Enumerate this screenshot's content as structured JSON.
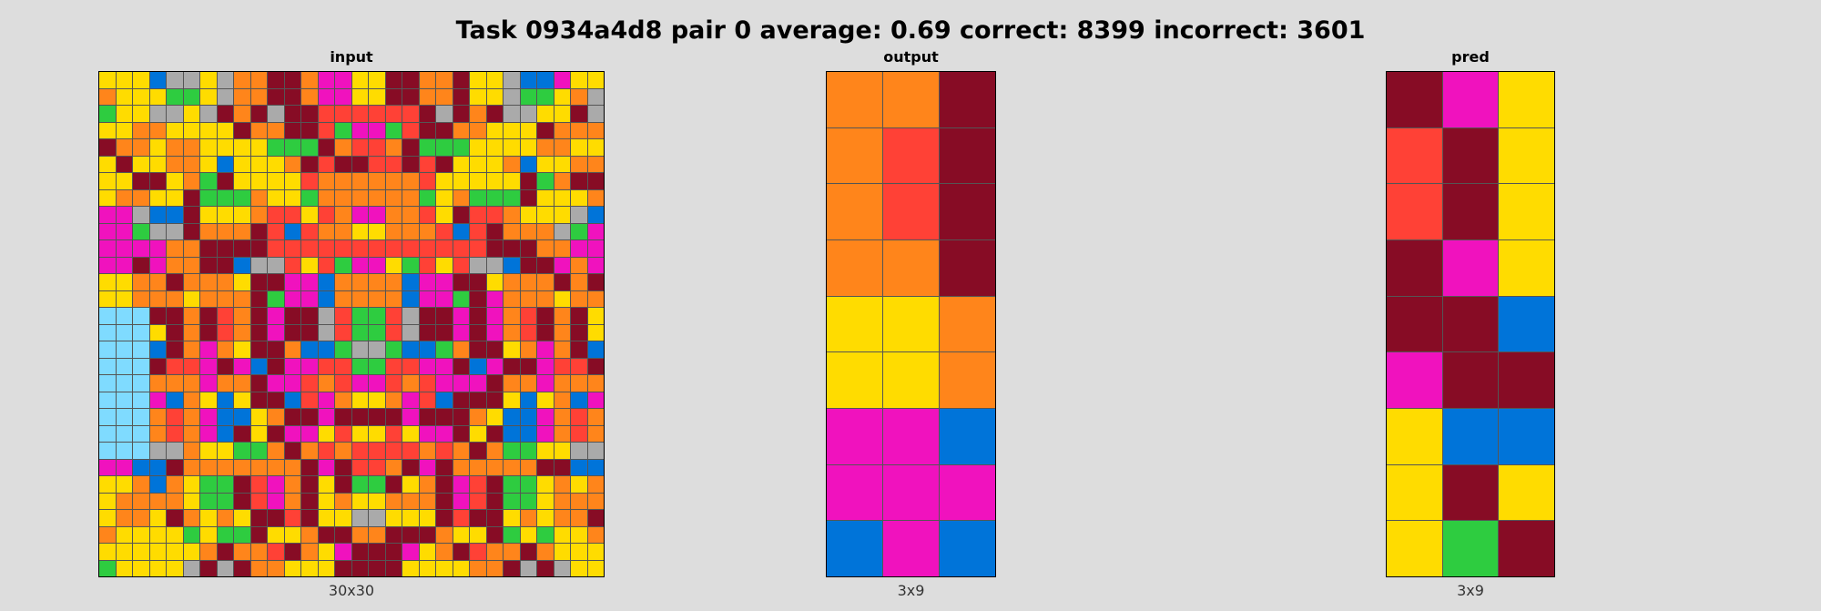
{
  "title": "Task 0934a4d8 pair 0 average: 0.69 correct: 8399 incorrect: 3601",
  "palette": {
    "0": "#000000",
    "1": "#0074d9",
    "2": "#ff4136",
    "3": "#2ecc40",
    "4": "#ffdc00",
    "5": "#aaaaaa",
    "6": "#f012be",
    "7": "#ff851b",
    "8": "#7fdbff",
    "9": "#870c25"
  },
  "panels": [
    {
      "title": "input",
      "size_label": "30x30",
      "rows": [
        "444155457799766449977944511644",
        "744433457799766449977944533475",
        "344554597959922222295979554495",
        "447744449779923663299774449777",
        "977477444433397227933344447744",
        "494477414447929922929444714477",
        "449947394444277777724444493799",
        "477449333744377777734733394447",
        "665119444722427667724922744451",
        "663559777921277447772129777536",
        "666677999922222222222229997766",
        "669677991552423664324255199676",
        "447797774996617777166994777979",
        "447774777936617777166396777477",
        "888997927969952332599696729794",
        "888497927969952332599696729794",
        "888197674997113553113799476791",
        "888922696196622332266916996229",
        "888777677966272662726669776777",
        "888617414991267447621999414716",
        "888727611479969999699974116727",
        "888727619496642442466949116727",
        "888557443379727222272797334455",
        "661197777777969227969777779911",
        "447174339267949339479629334747",
        "477774339267947447779629334777",
        "477497474992944554449299474779",
        "744443433944799779997449343447",
        "444444797729746999647927797444",
        "344445959774449999444477959544"
      ]
    },
    {
      "title": "output",
      "size_label": "3x9",
      "rows": [
        "779",
        "729",
        "729",
        "779",
        "447",
        "447",
        "661",
        "666",
        "161"
      ]
    },
    {
      "title": "pred",
      "size_label": "3x9",
      "rows": [
        "964",
        "294",
        "294",
        "964",
        "991",
        "699",
        "411",
        "494",
        "439"
      ]
    }
  ]
}
